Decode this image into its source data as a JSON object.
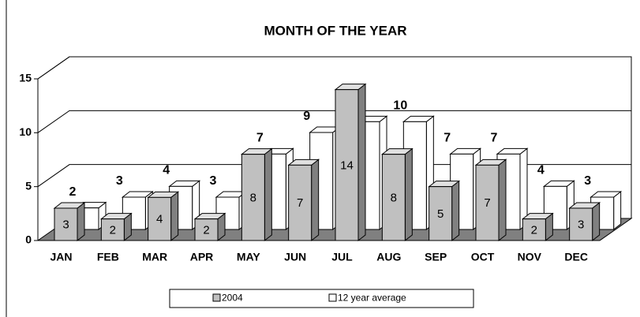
{
  "chart_data": {
    "type": "bar3d",
    "title": "MONTH OF THE YEAR",
    "categories": [
      "JAN",
      "FEB",
      "MAR",
      "APR",
      "MAY",
      "JUN",
      "JUL",
      "AUG",
      "SEP",
      "OCT",
      "NOV",
      "DEC"
    ],
    "series": [
      {
        "name": "2004",
        "color": "#c0c0c0",
        "values": [
          3,
          2,
          4,
          2,
          8,
          7,
          14,
          8,
          5,
          7,
          2,
          3
        ]
      },
      {
        "name": "12 year average",
        "color": "#ffffff",
        "values": [
          2,
          3,
          4,
          3,
          7,
          9,
          10,
          10,
          7,
          7,
          4,
          3
        ]
      }
    ],
    "ylim": [
      0,
      15
    ],
    "yticks": [
      0,
      5,
      10,
      15
    ],
    "grid": true,
    "legend": "bottom"
  }
}
